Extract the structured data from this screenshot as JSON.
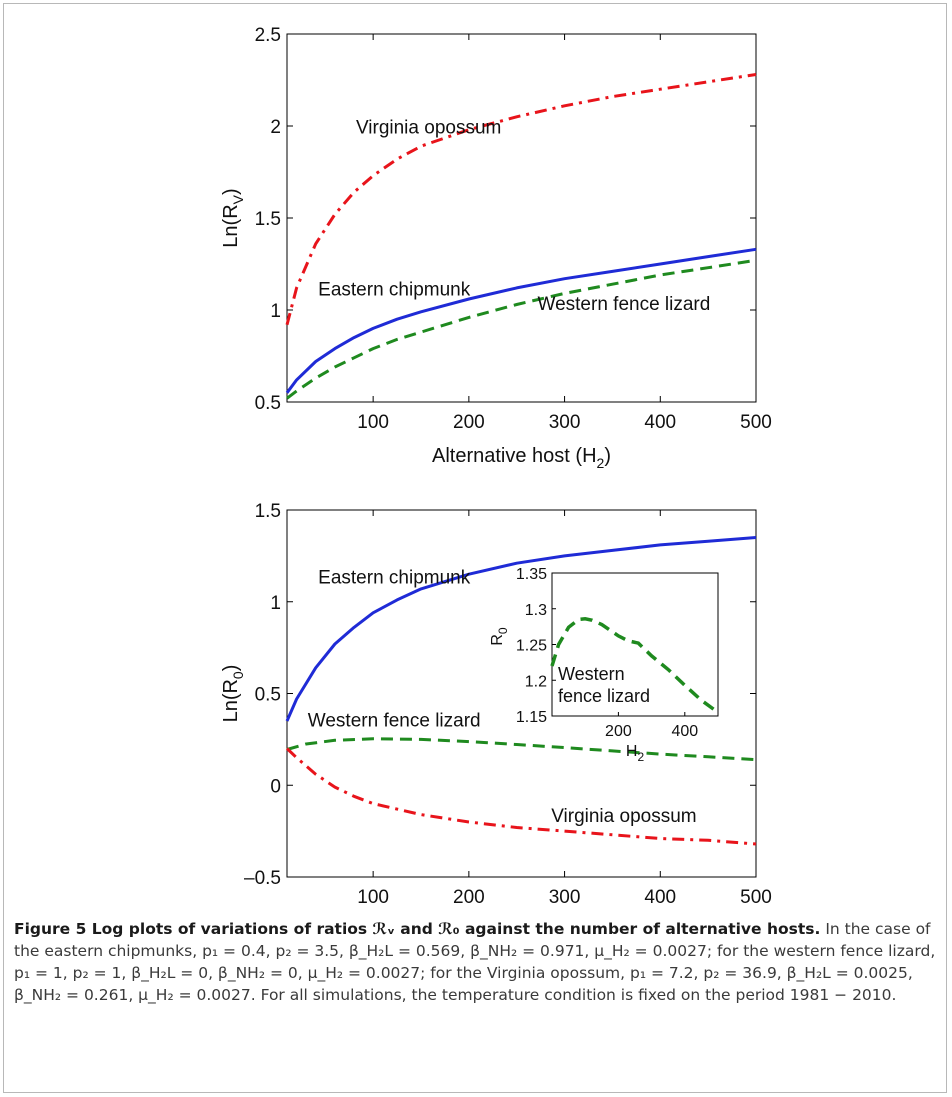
{
  "chart_data": [
    {
      "type": "line",
      "xlabel": "Alternative host (H",
      "xlabel_sub": "2",
      "xlabel_end": ")",
      "ylabel": "Ln(R",
      "ylabel_sub": "V",
      "ylabel_end": ")",
      "xlim": [
        10,
        500
      ],
      "ylim": [
        0.5,
        2.5
      ],
      "xticks": [
        100,
        200,
        300,
        400,
        500
      ],
      "yticks": [
        0.5,
        1,
        1.5,
        2,
        2.5
      ],
      "grid": false,
      "series": [
        {
          "name": "Virginia opossum",
          "color": "#e8141b",
          "dash": "dashdot",
          "x": [
            10,
            20,
            40,
            60,
            80,
            100,
            125,
            150,
            200,
            250,
            300,
            350,
            400,
            450,
            500
          ],
          "y": [
            0.92,
            1.12,
            1.36,
            1.52,
            1.64,
            1.73,
            1.82,
            1.89,
            1.98,
            2.05,
            2.11,
            2.16,
            2.2,
            2.24,
            2.28
          ]
        },
        {
          "name": "Eastern chipmunk",
          "color": "#1f2bd6",
          "dash": "solid",
          "x": [
            10,
            20,
            40,
            60,
            80,
            100,
            125,
            150,
            200,
            250,
            300,
            350,
            400,
            450,
            500
          ],
          "y": [
            0.55,
            0.62,
            0.72,
            0.79,
            0.85,
            0.9,
            0.95,
            0.99,
            1.06,
            1.12,
            1.17,
            1.21,
            1.25,
            1.29,
            1.33
          ]
        },
        {
          "name": "Western fence lizard",
          "color": "#1f8a1f",
          "dash": "dashed",
          "x": [
            10,
            20,
            40,
            60,
            80,
            100,
            125,
            150,
            200,
            250,
            300,
            350,
            400,
            450,
            500
          ],
          "y": [
            0.52,
            0.56,
            0.63,
            0.69,
            0.74,
            0.79,
            0.84,
            0.88,
            0.96,
            1.03,
            1.09,
            1.14,
            1.19,
            1.23,
            1.27
          ]
        }
      ],
      "annotations": [
        {
          "text": "Virginia opossum",
          "x": 158,
          "y": 1.96
        },
        {
          "text": "Eastern chipmunk",
          "x": 122,
          "y": 1.08
        },
        {
          "text": "Western fence lizard",
          "x": 362,
          "y": 1.0
        }
      ]
    },
    {
      "type": "line",
      "xlabel": "Alternative host (H",
      "xlabel_sub": "2",
      "xlabel_end": ")",
      "ylabel": "Ln(R",
      "ylabel_sub": "0",
      "ylabel_end": ")",
      "xlim": [
        10,
        500
      ],
      "ylim": [
        -0.5,
        1.5
      ],
      "xticks": [
        100,
        200,
        300,
        400,
        500
      ],
      "yticks": [
        -0.5,
        0,
        0.5,
        1,
        1.5
      ],
      "grid": false,
      "series": [
        {
          "name": "Eastern chipmunk",
          "color": "#1f2bd6",
          "dash": "solid",
          "x": [
            10,
            20,
            40,
            60,
            80,
            100,
            125,
            150,
            200,
            250,
            300,
            350,
            400,
            450,
            500
          ],
          "y": [
            0.35,
            0.47,
            0.64,
            0.77,
            0.86,
            0.94,
            1.01,
            1.07,
            1.15,
            1.21,
            1.25,
            1.28,
            1.31,
            1.33,
            1.35
          ]
        },
        {
          "name": "Western fence lizard",
          "color": "#1f8a1f",
          "dash": "dashed",
          "x": [
            10,
            30,
            60,
            100,
            150,
            200,
            250,
            300,
            350,
            400,
            450,
            500
          ],
          "y": [
            0.195,
            0.225,
            0.245,
            0.253,
            0.25,
            0.238,
            0.222,
            0.205,
            0.187,
            0.17,
            0.155,
            0.14
          ]
        },
        {
          "name": "Virginia opossum",
          "color": "#e8141b",
          "dash": "dashdot",
          "x": [
            10,
            20,
            40,
            60,
            80,
            100,
            150,
            200,
            250,
            300,
            350,
            400,
            450,
            500
          ],
          "y": [
            0.2,
            0.15,
            0.06,
            -0.01,
            -0.06,
            -0.1,
            -0.16,
            -0.2,
            -0.23,
            -0.25,
            -0.27,
            -0.29,
            -0.3,
            -0.32
          ]
        }
      ],
      "annotations": [
        {
          "text": "Eastern chipmunk",
          "x": 122,
          "y": 1.1
        },
        {
          "text": "Western fence lizard",
          "x": 122,
          "y": 0.32
        },
        {
          "text": "Virginia opossum",
          "x": 362,
          "y": -0.2
        }
      ],
      "inset": {
        "ylabel": "R",
        "ylabel_sub": "0",
        "xlabel": "H",
        "xlabel_sub": "2",
        "xlim": [
          0,
          500
        ],
        "ylim": [
          1.15,
          1.35
        ],
        "xticks": [
          200,
          400
        ],
        "yticks": [
          1.15,
          1.2,
          1.25,
          1.3,
          1.35
        ],
        "series": [
          {
            "name": "Western fence lizard",
            "color": "#1f8a1f",
            "dash": "dashed",
            "x": [
              0,
              20,
              50,
              80,
              100,
              120,
              150,
              200,
              230,
              260,
              300,
              350,
              400,
              450,
              500
            ],
            "y": [
              1.22,
              1.25,
              1.274,
              1.285,
              1.286,
              1.284,
              1.278,
              1.262,
              1.255,
              1.252,
              1.234,
              1.215,
              1.193,
              1.172,
              1.155
            ]
          }
        ],
        "annotation_lines": [
          "Western",
          "fence lizard"
        ]
      }
    }
  ],
  "caption": {
    "lead": "Figure 5 Log plots of variations of ratios ℛᵥ and ℛ₀ against the number of alternative hosts.",
    "body": " In the case of the eastern chipmunks, p₁ = 0.4, p₂ = 3.5, β_H₂L = 0.569, β_NH₂ = 0.971, μ_H₂ = 0.0027; for the western fence lizard, p₁ = 1, p₂ = 1, β_H₂L = 0, β_NH₂ = 0, μ_H₂ = 0.0027; for the Virginia opossum, p₁ = 7.2, p₂ = 36.9, β_H₂L = 0.0025, β_NH₂ = 0.261, μ_H₂ = 0.0027. For all simulations, the temperature condition is fixed on the period 1981 − 2010."
  }
}
